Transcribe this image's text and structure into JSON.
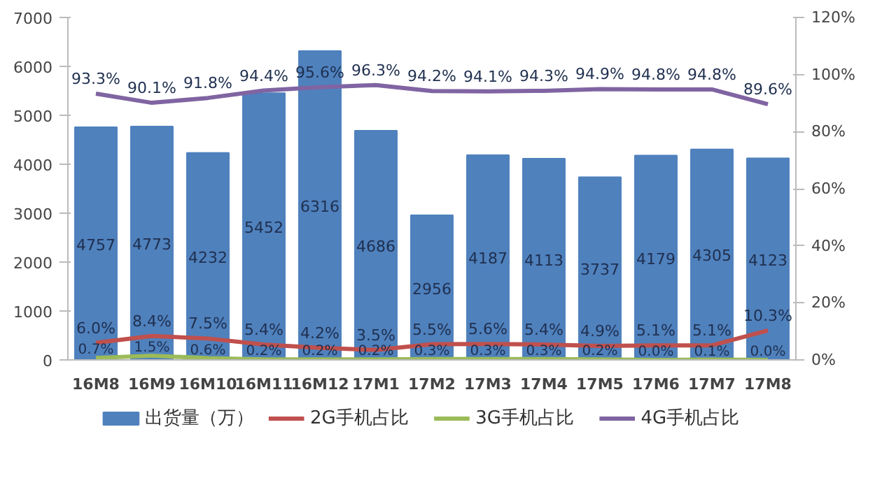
{
  "chart_data": {
    "type": "bar",
    "categories": [
      "16M8",
      "16M9",
      "16M10",
      "16M11",
      "16M12",
      "17M1",
      "17M2",
      "17M3",
      "17M4",
      "17M5",
      "17M6",
      "17M7",
      "17M8"
    ],
    "series": [
      {
        "name": "出货量（万）",
        "color": "#4f81bd",
        "values": [
          4757,
          4773,
          4232,
          5452,
          6316,
          4686,
          2956,
          4187,
          4113,
          3737,
          4179,
          4305,
          4123
        ]
      },
      {
        "name": "2G手机占比",
        "type": "line",
        "axis": "y2",
        "color": "#c0504d",
        "values": [
          6.0,
          8.4,
          7.5,
          5.4,
          4.2,
          3.5,
          5.5,
          5.6,
          5.4,
          4.9,
          5.1,
          5.1,
          10.3
        ],
        "value_labels": [
          "6.0%",
          "8.4%",
          "7.5%",
          "5.4%",
          "4.2%",
          "3.5%",
          "5.5%",
          "5.6%",
          "5.4%",
          "4.9%",
          "5.1%",
          "5.1%",
          "10.3%"
        ]
      },
      {
        "name": "3G手机占比",
        "type": "line",
        "axis": "y2",
        "color": "#9bbb59",
        "values": [
          0.7,
          1.5,
          0.6,
          0.2,
          0.2,
          0.2,
          0.3,
          0.3,
          0.3,
          0.2,
          0.0,
          0.1,
          0.0
        ],
        "value_labels": [
          "0.7%",
          "1.5%",
          "0.6%",
          "0.2%",
          "0.2%",
          "0.2%",
          "0.3%",
          "0.3%",
          "0.3%",
          "0.2%",
          "0.0%",
          "0.1%",
          "0.0%"
        ]
      },
      {
        "name": "4G手机占比",
        "type": "line",
        "axis": "y2",
        "color": "#8064a2",
        "values": [
          93.3,
          90.1,
          91.8,
          94.4,
          95.6,
          96.3,
          94.2,
          94.1,
          94.3,
          94.9,
          94.8,
          94.8,
          89.6
        ],
        "value_labels": [
          "93.3%",
          "90.1%",
          "91.8%",
          "94.4%",
          "95.6%",
          "96.3%",
          "94.2%",
          "94.1%",
          "94.3%",
          "94.9%",
          "94.8%",
          "94.8%",
          "89.6%"
        ]
      }
    ],
    "ylim": [
      0,
      7000
    ],
    "yticks": [
      0,
      1000,
      2000,
      3000,
      4000,
      5000,
      6000,
      7000
    ],
    "y2lim": [
      0,
      120
    ],
    "y2ticks": [
      {
        "value": 0,
        "label": "0%"
      },
      {
        "value": 20,
        "label": "20%"
      },
      {
        "value": 40,
        "label": "40%"
      },
      {
        "value": 60,
        "label": "60%"
      },
      {
        "value": 80,
        "label": "80%"
      },
      {
        "value": 100,
        "label": "100%"
      },
      {
        "value": 120,
        "label": "120%"
      }
    ],
    "data_labels": true,
    "grid": false,
    "legend": "bottom"
  }
}
